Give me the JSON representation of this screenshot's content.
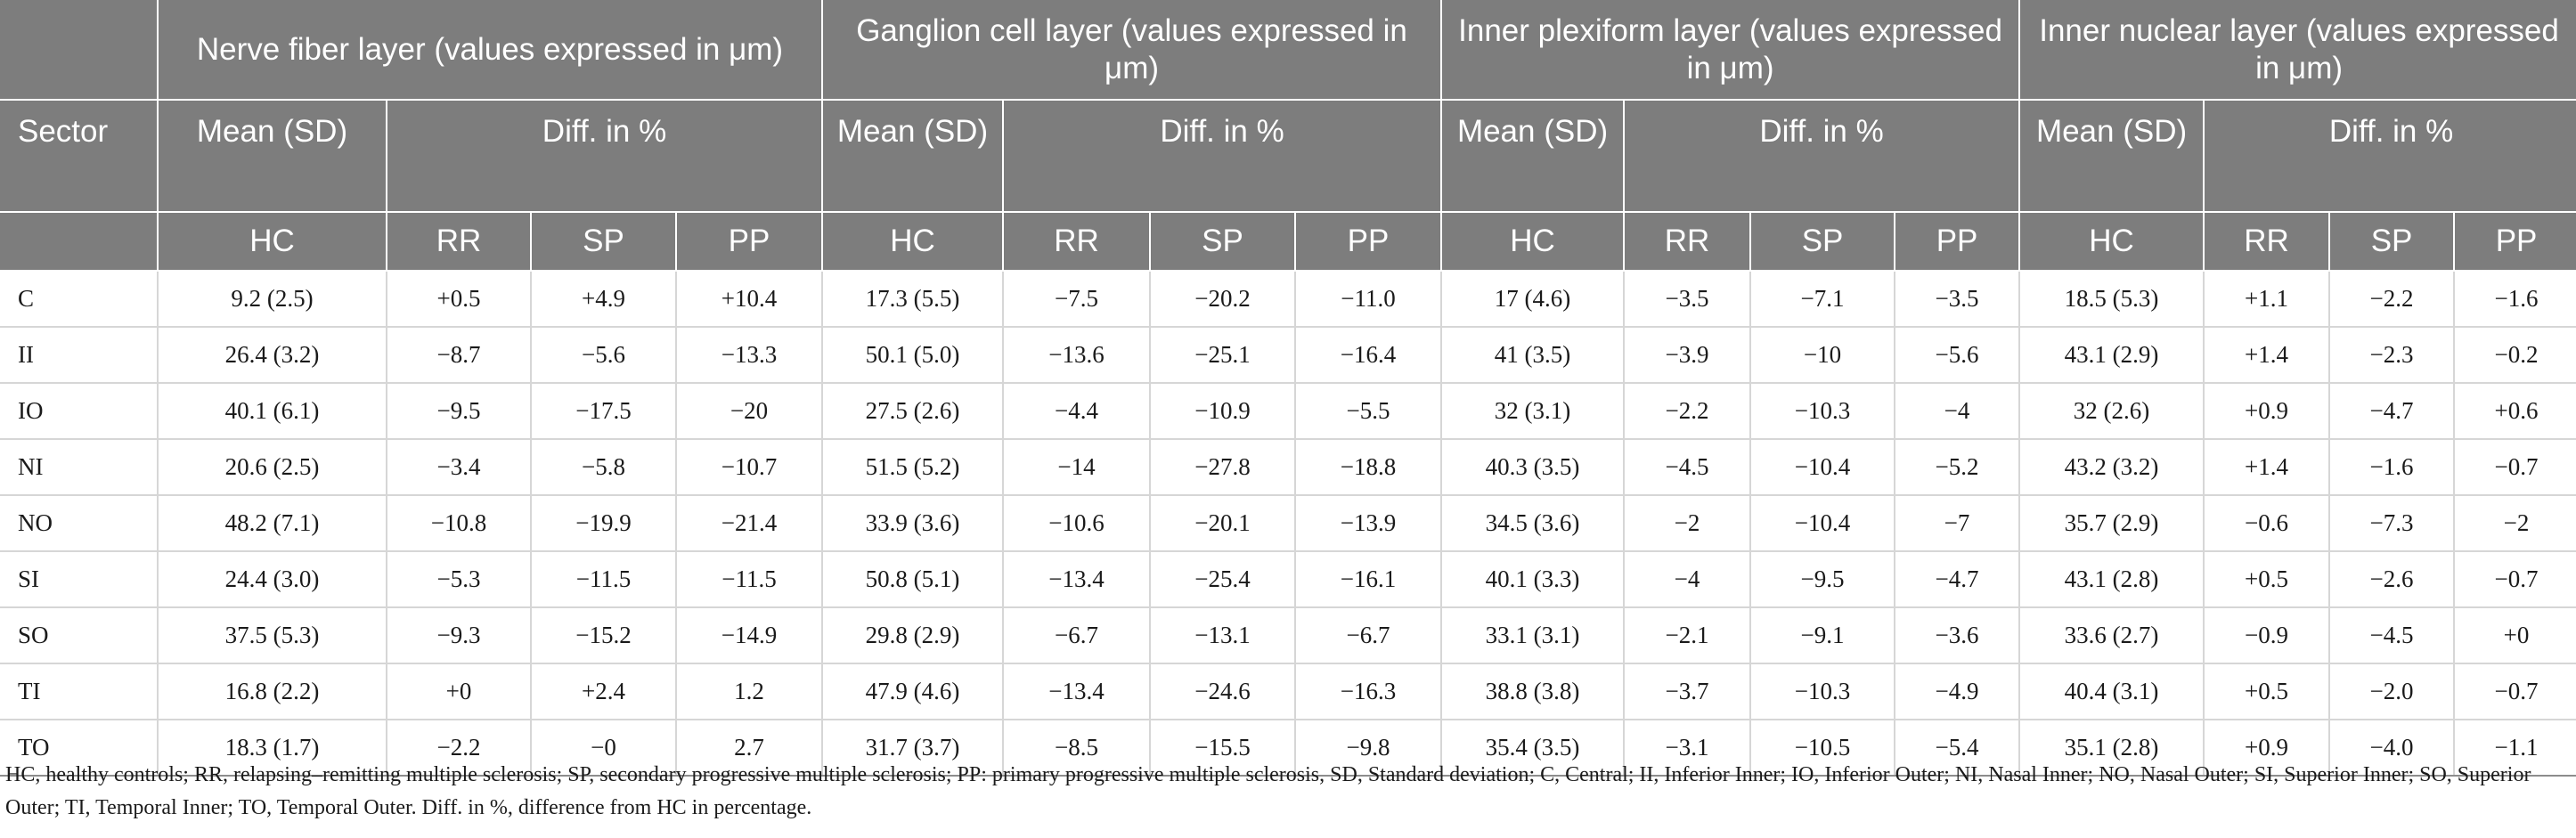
{
  "header": {
    "sector_label": "Sector",
    "mean_sd_label": "Mean (SD)",
    "diff_label": "Diff. in %",
    "hc_label": "HC",
    "rr_label": "RR",
    "sp_label": "SP",
    "pp_label": "PP",
    "layers": [
      "Nerve fiber layer (values expressed in μm)",
      "Ganglion cell layer (values expressed in μm)",
      "Inner plexiform layer (values expressed in μm)",
      "Inner nuclear layer (values expressed in μm)"
    ]
  },
  "rows": [
    {
      "sector": "C",
      "cells": [
        "9.2 (2.5)",
        "+0.5",
        "+4.9",
        "+10.4",
        "17.3 (5.5)",
        "−7.5",
        "−20.2",
        "−11.0",
        "17 (4.6)",
        "−3.5",
        "−7.1",
        "−3.5",
        "18.5 (5.3)",
        "+1.1",
        "−2.2",
        "−1.6"
      ]
    },
    {
      "sector": "II",
      "cells": [
        "26.4 (3.2)",
        "−8.7",
        "−5.6",
        "−13.3",
        "50.1 (5.0)",
        "−13.6",
        "−25.1",
        "−16.4",
        "41 (3.5)",
        "−3.9",
        "−10",
        "−5.6",
        "43.1 (2.9)",
        "+1.4",
        "−2.3",
        "−0.2"
      ]
    },
    {
      "sector": "IO",
      "cells": [
        "40.1 (6.1)",
        "−9.5",
        "−17.5",
        "−20",
        "27.5 (2.6)",
        "−4.4",
        "−10.9",
        "−5.5",
        "32 (3.1)",
        "−2.2",
        "−10.3",
        "−4",
        "32 (2.6)",
        "+0.9",
        "−4.7",
        "+0.6"
      ]
    },
    {
      "sector": "NI",
      "cells": [
        "20.6 (2.5)",
        "−3.4",
        "−5.8",
        "−10.7",
        "51.5 (5.2)",
        "−14",
        "−27.8",
        "−18.8",
        "40.3 (3.5)",
        "−4.5",
        "−10.4",
        "−5.2",
        "43.2 (3.2)",
        "+1.4",
        "−1.6",
        "−0.7"
      ]
    },
    {
      "sector": "NO",
      "cells": [
        "48.2 (7.1)",
        "−10.8",
        "−19.9",
        "−21.4",
        "33.9 (3.6)",
        "−10.6",
        "−20.1",
        "−13.9",
        "34.5 (3.6)",
        "−2",
        "−10.4",
        "−7",
        "35.7 (2.9)",
        "−0.6",
        "−7.3",
        "−2"
      ]
    },
    {
      "sector": "SI",
      "cells": [
        "24.4 (3.0)",
        "−5.3",
        "−11.5",
        "−11.5",
        "50.8 (5.1)",
        "−13.4",
        "−25.4",
        "−16.1",
        "40.1 (3.3)",
        "−4",
        "−9.5",
        "−4.7",
        "43.1 (2.8)",
        "+0.5",
        "−2.6",
        "−0.7"
      ]
    },
    {
      "sector": "SO",
      "cells": [
        "37.5 (5.3)",
        "−9.3",
        "−15.2",
        "−14.9",
        "29.8 (2.9)",
        "−6.7",
        "−13.1",
        "−6.7",
        "33.1 (3.1)",
        "−2.1",
        "−9.1",
        "−3.6",
        "33.6 (2.7)",
        "−0.9",
        "−4.5",
        "+0"
      ]
    },
    {
      "sector": "TI",
      "cells": [
        "16.8 (2.2)",
        "+0",
        "+2.4",
        "1.2",
        "47.9 (4.6)",
        "−13.4",
        "−24.6",
        "−16.3",
        "38.8 (3.8)",
        "−3.7",
        "−10.3",
        "−4.9",
        "40.4 (3.1)",
        "+0.5",
        "−2.0",
        "−0.7"
      ]
    },
    {
      "sector": "TO",
      "cells": [
        "18.3 (1.7)",
        "−2.2",
        "−0",
        "2.7",
        "31.7 (3.7)",
        "−8.5",
        "−15.5",
        "−9.8",
        "35.4 (3.5)",
        "−3.1",
        "−10.5",
        "−5.4",
        "35.1 (2.8)",
        "+0.9",
        "−4.0",
        "−1.1"
      ]
    }
  ],
  "footnote": "HC, healthy controls; RR, relapsing–remitting multiple sclerosis; SP, secondary progressive multiple sclerosis; PP: primary progressive multiple sclerosis, SD, Standard deviation; C, Central; II, Inferior Inner; IO, Inferior Outer; NI, Nasal Inner; NO, Nasal Outer; SI, Superior Inner; SO, Superior Outer; TI, Temporal Inner; TO, Temporal Outer. Diff. in %, difference from HC in percentage."
}
